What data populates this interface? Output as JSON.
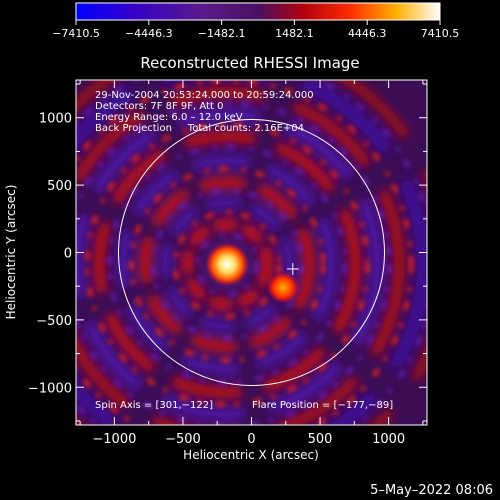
{
  "chart_data": {
    "type": "heatmap",
    "title": "Reconstructed RHESSI Image",
    "xlabel": "Heliocentric X (arcsec)",
    "ylabel": "Heliocentric Y (arcsec)",
    "xlim": [
      -1280,
      1280
    ],
    "ylim": [
      -1280,
      1280
    ],
    "x_ticks": [
      -1000,
      -500,
      0,
      500,
      1000
    ],
    "y_ticks": [
      -1000,
      -500,
      0,
      500,
      1000
    ],
    "x_tick_labels": [
      "−1000",
      "−500",
      "0",
      "500",
      "1000"
    ],
    "y_tick_labels": [
      "−1000",
      "−500",
      "0",
      "500",
      "1000"
    ],
    "colorbar": {
      "min": -7410.5,
      "max": 7410.5,
      "ticks": [
        -7410.5,
        -4446.3,
        -1482.1,
        1482.1,
        4446.3,
        7410.5
      ],
      "tick_labels": [
        "−7410.5",
        "−4446.3",
        "−1482.1",
        "1482.1",
        "4446.3",
        "7410.5"
      ]
    },
    "info_lines": [
      "29-Nov-2004 20:53:24.000 to 20:59:24.000",
      "Detectors: 7F 8F 9F, Att 0",
      "Energy Range: 6.0 – 12.0 keV",
      "Back Projection     Total counts: 2.16E+04"
    ],
    "spin_axis_text": "Spin Axis = [301,−122]",
    "flare_position_text": "Flare Position = [−177,−89]",
    "spin_axis": [
      301,
      -122
    ],
    "flare_position": [
      -177,
      -89
    ],
    "solar_limb_radius": 970,
    "sources": [
      {
        "x": -177,
        "y": -89,
        "intensity": 1.0
      },
      {
        "x": 230,
        "y": -260,
        "intensity": 0.55
      }
    ],
    "grid": false
  },
  "footer": {
    "date": "5–May–2022 08:06"
  }
}
